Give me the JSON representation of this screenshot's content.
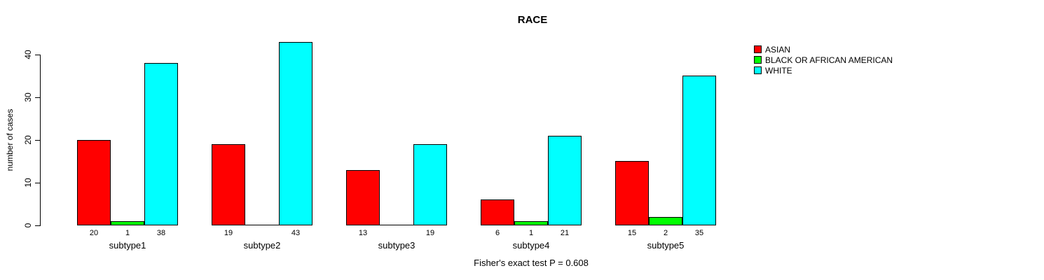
{
  "chart_data": {
    "type": "bar",
    "title": "RACE",
    "ylabel": "number of cases",
    "footer": "Fisher's exact test P = 0.608",
    "categories": [
      "subtype1",
      "subtype2",
      "subtype3",
      "subtype4",
      "subtype5"
    ],
    "series": [
      {
        "name": "ASIAN",
        "color": "#ff0000",
        "values": [
          20,
          19,
          13,
          6,
          15
        ]
      },
      {
        "name": "BLACK OR AFRICAN AMERICAN",
        "color": "#00ff00",
        "values": [
          1,
          0,
          0,
          1,
          2
        ]
      },
      {
        "name": "WHITE",
        "color": "#00ffff",
        "values": [
          38,
          43,
          19,
          21,
          35
        ]
      }
    ],
    "yticks": [
      0,
      10,
      20,
      30,
      40
    ],
    "ylim": [
      0,
      43
    ],
    "grid": false,
    "legend_position": "right-inside",
    "bar_border_color": "#000000",
    "background_color": "#ffffff"
  }
}
